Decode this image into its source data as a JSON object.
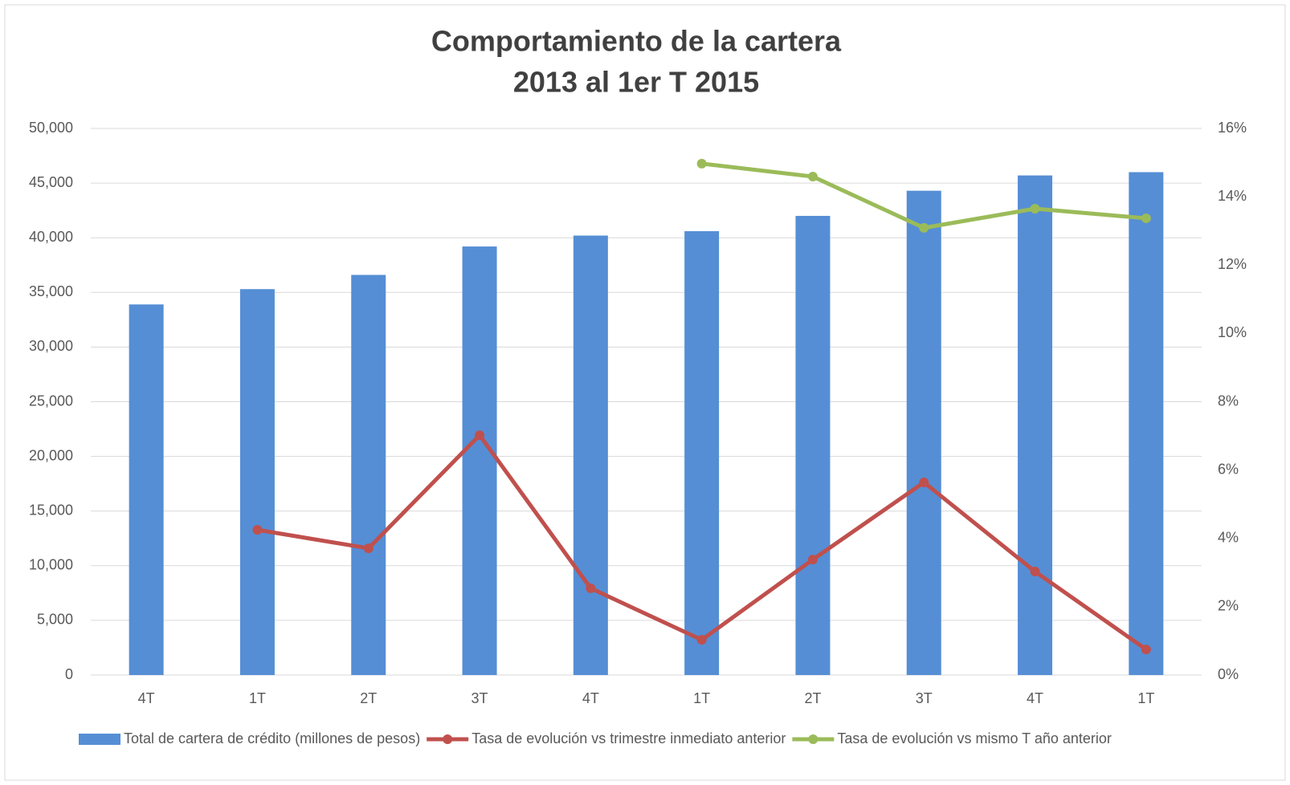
{
  "chart_data": {
    "type": "bar_line",
    "title": [
      "Comportamiento de la cartera",
      "2013 al 1er T 2015"
    ],
    "categories": [
      "4T",
      "1T",
      "2T",
      "3T",
      "4T",
      "1T",
      "2T",
      "3T",
      "4T",
      "1T"
    ],
    "series": [
      {
        "name": "Total de cartera de crédito (millones de pesos)",
        "color": "#558ed5",
        "type": "bar",
        "values": [
          33900,
          35300,
          36600,
          39200,
          40200,
          40600,
          42000,
          44300,
          45700,
          46000
        ]
      },
      {
        "name": "Tasa de evolución vs trimestre inmediato anterior",
        "color": "#c0504d",
        "type": "line",
        "axis": "y2",
        "values": [
          null,
          4.25,
          3.71,
          7.02,
          2.54,
          1.03,
          3.38,
          5.64,
          3.03,
          0.75
        ]
      },
      {
        "name": "Tasa de evolución vs mismo T año anterior",
        "color": "#9bbb59",
        "type": "line",
        "axis": "y2",
        "values": [
          null,
          null,
          null,
          null,
          null,
          14.97,
          14.59,
          13.09,
          13.65,
          13.37
        ]
      }
    ],
    "ylim": [
      0,
      50000
    ],
    "yticks": [
      0,
      {
        "value": 5000,
        "label": "5,000"
      },
      {
        "value": 10000,
        "label": "10,000"
      },
      {
        "value": 15000,
        "label": "15,000"
      },
      {
        "value": 20000,
        "label": "20,000"
      },
      {
        "value": 25000,
        "label": "25,000"
      },
      {
        "value": 30000,
        "label": "30,000"
      },
      {
        "value": 35000,
        "label": "35,000"
      },
      {
        "value": 40000,
        "label": "40,000"
      },
      {
        "value": 45000,
        "label": "45,000"
      },
      {
        "value": 50000,
        "label": "50,000"
      }
    ],
    "y2lim": [
      0,
      16
    ],
    "y2ticks": [
      {
        "value": 0,
        "label": "0%"
      },
      {
        "value": 2,
        "label": "2%"
      },
      {
        "value": 4,
        "label": "4%"
      },
      {
        "value": 6,
        "label": "6%"
      },
      {
        "value": 8,
        "label": "8%"
      },
      {
        "value": 10,
        "label": "10%"
      },
      {
        "value": 12,
        "label": "12%"
      },
      {
        "value": 14,
        "label": "14%"
      },
      {
        "value": 16,
        "label": "16%"
      }
    ],
    "grid": true,
    "legend": "bottom"
  }
}
